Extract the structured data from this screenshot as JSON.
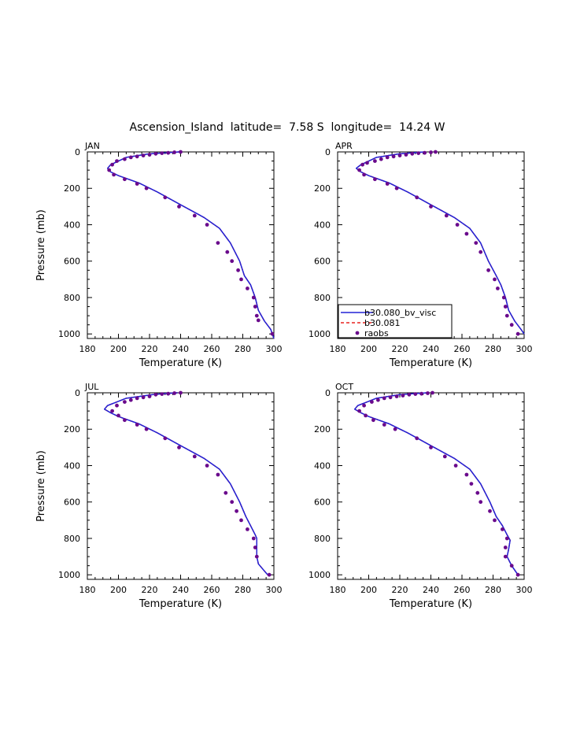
{
  "figure": {
    "title": "Ascension_Island  latitude=  7.58 S  longitude=  14.24 W"
  },
  "colors": {
    "model_a": "#2222d6",
    "model_b": "#e8221e",
    "obs": "#6a0a8c"
  },
  "legend": {
    "entries": [
      {
        "label": "b30.080_bv_visc",
        "style": "line",
        "series": "model_a"
      },
      {
        "label": "b30.081",
        "style": "dashed",
        "series": "model_b"
      },
      {
        "label": "raobs",
        "style": "dot",
        "series": "obs"
      }
    ]
  },
  "chart_data": [
    {
      "type": "line",
      "panel": "JAN",
      "xlabel": "Temperature (K)",
      "ylabel": "Pressure (mb)",
      "xlim": [
        180,
        300
      ],
      "ylim": [
        0,
        1025
      ],
      "y_inverted": true,
      "xticks": [
        180,
        200,
        220,
        240,
        260,
        280,
        300
      ],
      "yticks": [
        0,
        200,
        400,
        600,
        800,
        1000
      ],
      "series": [
        {
          "name": "b30.080_bv_visc",
          "x": [
            239,
            230,
            220,
            205,
            200,
            195,
            193,
            195,
            200,
            213,
            225,
            240,
            255,
            265,
            272,
            278,
            281,
            285,
            288,
            290,
            294,
            298,
            300
          ],
          "y": [
            0,
            5,
            10,
            30,
            50,
            70,
            90,
            110,
            130,
            170,
            220,
            290,
            360,
            420,
            500,
            600,
            680,
            730,
            800,
            870,
            930,
            975,
            1025
          ]
        },
        {
          "name": "b30.081",
          "x": [
            239,
            230,
            220,
            205,
            200,
            195,
            193,
            195,
            200,
            213,
            225,
            240,
            255,
            265,
            272,
            278,
            281,
            285,
            288,
            290,
            294,
            298,
            300
          ],
          "y": [
            0,
            5,
            10,
            30,
            50,
            70,
            90,
            110,
            130,
            170,
            220,
            290,
            360,
            420,
            500,
            600,
            680,
            730,
            800,
            870,
            930,
            975,
            1025
          ]
        },
        {
          "name": "raobs",
          "x": [
            240,
            236,
            232,
            228,
            224,
            220,
            216,
            212,
            208,
            204,
            199,
            196,
            194,
            197,
            204,
            212,
            218,
            230,
            239,
            249,
            257,
            264,
            270,
            273,
            277,
            279,
            283,
            287,
            288,
            289,
            290,
            299
          ],
          "y": [
            0,
            2,
            5,
            7,
            10,
            15,
            20,
            25,
            30,
            40,
            50,
            70,
            100,
            125,
            150,
            175,
            200,
            250,
            300,
            350,
            400,
            500,
            550,
            600,
            650,
            700,
            750,
            800,
            850,
            900,
            925,
            1000
          ]
        }
      ]
    },
    {
      "type": "line",
      "panel": "APR",
      "xlabel": "Temperature (K)",
      "ylabel": "",
      "xlim": [
        180,
        300
      ],
      "ylim": [
        0,
        1025
      ],
      "y_inverted": true,
      "xticks": [
        180,
        200,
        220,
        240,
        260,
        280,
        300
      ],
      "yticks": [
        0,
        200,
        400,
        600,
        800,
        1000
      ],
      "series": [
        {
          "name": "b30.080_bv_visc",
          "x": [
            236,
            228,
            220,
            205,
            200,
            195,
            192,
            195,
            200,
            213,
            225,
            240,
            255,
            265,
            272,
            277,
            282,
            285,
            288,
            290,
            294,
            298,
            300
          ],
          "y": [
            0,
            5,
            10,
            30,
            50,
            70,
            90,
            110,
            130,
            170,
            220,
            290,
            360,
            420,
            500,
            600,
            680,
            730,
            800,
            870,
            930,
            975,
            1000
          ]
        },
        {
          "name": "b30.081",
          "x": [
            236,
            228,
            220,
            205,
            200,
            195,
            192,
            195,
            200,
            213,
            225,
            240,
            255,
            265,
            272,
            277,
            282,
            285,
            288,
            290,
            294,
            298,
            300
          ],
          "y": [
            0,
            5,
            10,
            30,
            50,
            70,
            90,
            110,
            130,
            170,
            220,
            290,
            360,
            420,
            500,
            600,
            680,
            730,
            800,
            870,
            930,
            975,
            1000
          ]
        },
        {
          "name": "raobs",
          "x": [
            243,
            240,
            236,
            232,
            228,
            224,
            220,
            216,
            212,
            208,
            204,
            199,
            196,
            194,
            197,
            204,
            212,
            218,
            231,
            240,
            250,
            257,
            263,
            269,
            272,
            277,
            281,
            283,
            287,
            288,
            289,
            292,
            296
          ],
          "y": [
            0,
            2,
            5,
            7,
            10,
            15,
            20,
            25,
            30,
            40,
            50,
            60,
            70,
            100,
            125,
            150,
            175,
            200,
            250,
            300,
            350,
            400,
            450,
            500,
            550,
            650,
            700,
            750,
            800,
            850,
            900,
            950,
            1000
          ]
        }
      ]
    },
    {
      "type": "line",
      "panel": "JUL",
      "xlabel": "Temperature (K)",
      "ylabel": "Pressure (mb)",
      "xlim": [
        180,
        300
      ],
      "ylim": [
        0,
        1025
      ],
      "y_inverted": true,
      "xticks": [
        180,
        200,
        220,
        240,
        260,
        280,
        300
      ],
      "yticks": [
        0,
        200,
        400,
        600,
        800,
        1000
      ],
      "series": [
        {
          "name": "b30.080_bv_visc",
          "x": [
            238,
            228,
            222,
            205,
            199,
            193,
            191,
            195,
            200,
            213,
            225,
            240,
            255,
            265,
            272,
            278,
            282,
            285,
            288,
            289,
            289,
            290,
            293,
            296
          ],
          "y": [
            0,
            5,
            10,
            30,
            50,
            70,
            90,
            110,
            130,
            170,
            220,
            290,
            360,
            420,
            500,
            600,
            680,
            730,
            780,
            800,
            900,
            940,
            970,
            1000
          ]
        },
        {
          "name": "b30.081",
          "x": [
            238,
            228,
            222,
            205,
            199,
            193,
            191,
            195,
            200,
            213,
            225,
            240,
            255,
            265,
            272,
            278,
            282,
            285,
            288,
            289,
            289,
            290,
            293,
            296
          ],
          "y": [
            0,
            5,
            10,
            30,
            50,
            70,
            90,
            110,
            130,
            170,
            220,
            290,
            360,
            420,
            500,
            600,
            680,
            730,
            780,
            800,
            900,
            940,
            970,
            1000
          ]
        },
        {
          "name": "raobs",
          "x": [
            240,
            236,
            232,
            228,
            224,
            220,
            216,
            212,
            208,
            204,
            199,
            196,
            200,
            204,
            212,
            218,
            230,
            239,
            249,
            257,
            264,
            269,
            273,
            276,
            279,
            283,
            287,
            288,
            289,
            297
          ],
          "y": [
            0,
            2,
            5,
            7,
            10,
            20,
            25,
            30,
            40,
            50,
            70,
            100,
            125,
            150,
            175,
            200,
            250,
            300,
            350,
            400,
            450,
            550,
            600,
            650,
            700,
            750,
            800,
            850,
            900,
            1000
          ]
        }
      ]
    },
    {
      "type": "line",
      "panel": "OCT",
      "xlabel": "Temperature (K)",
      "ylabel": "",
      "xlim": [
        180,
        300
      ],
      "ylim": [
        0,
        1025
      ],
      "y_inverted": true,
      "xticks": [
        180,
        200,
        220,
        240,
        260,
        280,
        300
      ],
      "yticks": [
        0,
        200,
        400,
        600,
        800,
        1000
      ],
      "series": [
        {
          "name": "b30.080_bv_visc",
          "x": [
            238,
            228,
            220,
            205,
            199,
            193,
            191,
            195,
            200,
            213,
            225,
            240,
            255,
            265,
            272,
            278,
            282,
            286,
            289,
            291,
            290,
            289,
            292,
            296
          ],
          "y": [
            0,
            5,
            10,
            30,
            50,
            70,
            90,
            110,
            130,
            170,
            220,
            290,
            360,
            420,
            500,
            600,
            680,
            730,
            780,
            810,
            860,
            900,
            950,
            1000
          ]
        },
        {
          "name": "b30.081",
          "x": [
            238,
            228,
            220,
            205,
            199,
            193,
            191,
            195,
            200,
            213,
            225,
            240,
            255,
            265,
            272,
            278,
            282,
            286,
            289,
            291,
            290,
            289,
            292,
            296
          ],
          "y": [
            0,
            5,
            10,
            30,
            50,
            70,
            90,
            110,
            130,
            170,
            220,
            290,
            360,
            420,
            500,
            600,
            680,
            730,
            780,
            810,
            860,
            900,
            950,
            1000
          ]
        },
        {
          "name": "raobs",
          "x": [
            241,
            238,
            234,
            230,
            226,
            222,
            218,
            214,
            210,
            206,
            202,
            197,
            194,
            198,
            203,
            210,
            217,
            231,
            240,
            249,
            256,
            263,
            266,
            270,
            272,
            278,
            281,
            286,
            289,
            288,
            288,
            292,
            296
          ],
          "y": [
            0,
            2,
            5,
            7,
            10,
            15,
            20,
            25,
            30,
            40,
            50,
            70,
            100,
            125,
            150,
            175,
            200,
            250,
            300,
            350,
            400,
            450,
            500,
            550,
            600,
            650,
            700,
            750,
            800,
            850,
            900,
            950,
            1000
          ]
        }
      ]
    }
  ]
}
